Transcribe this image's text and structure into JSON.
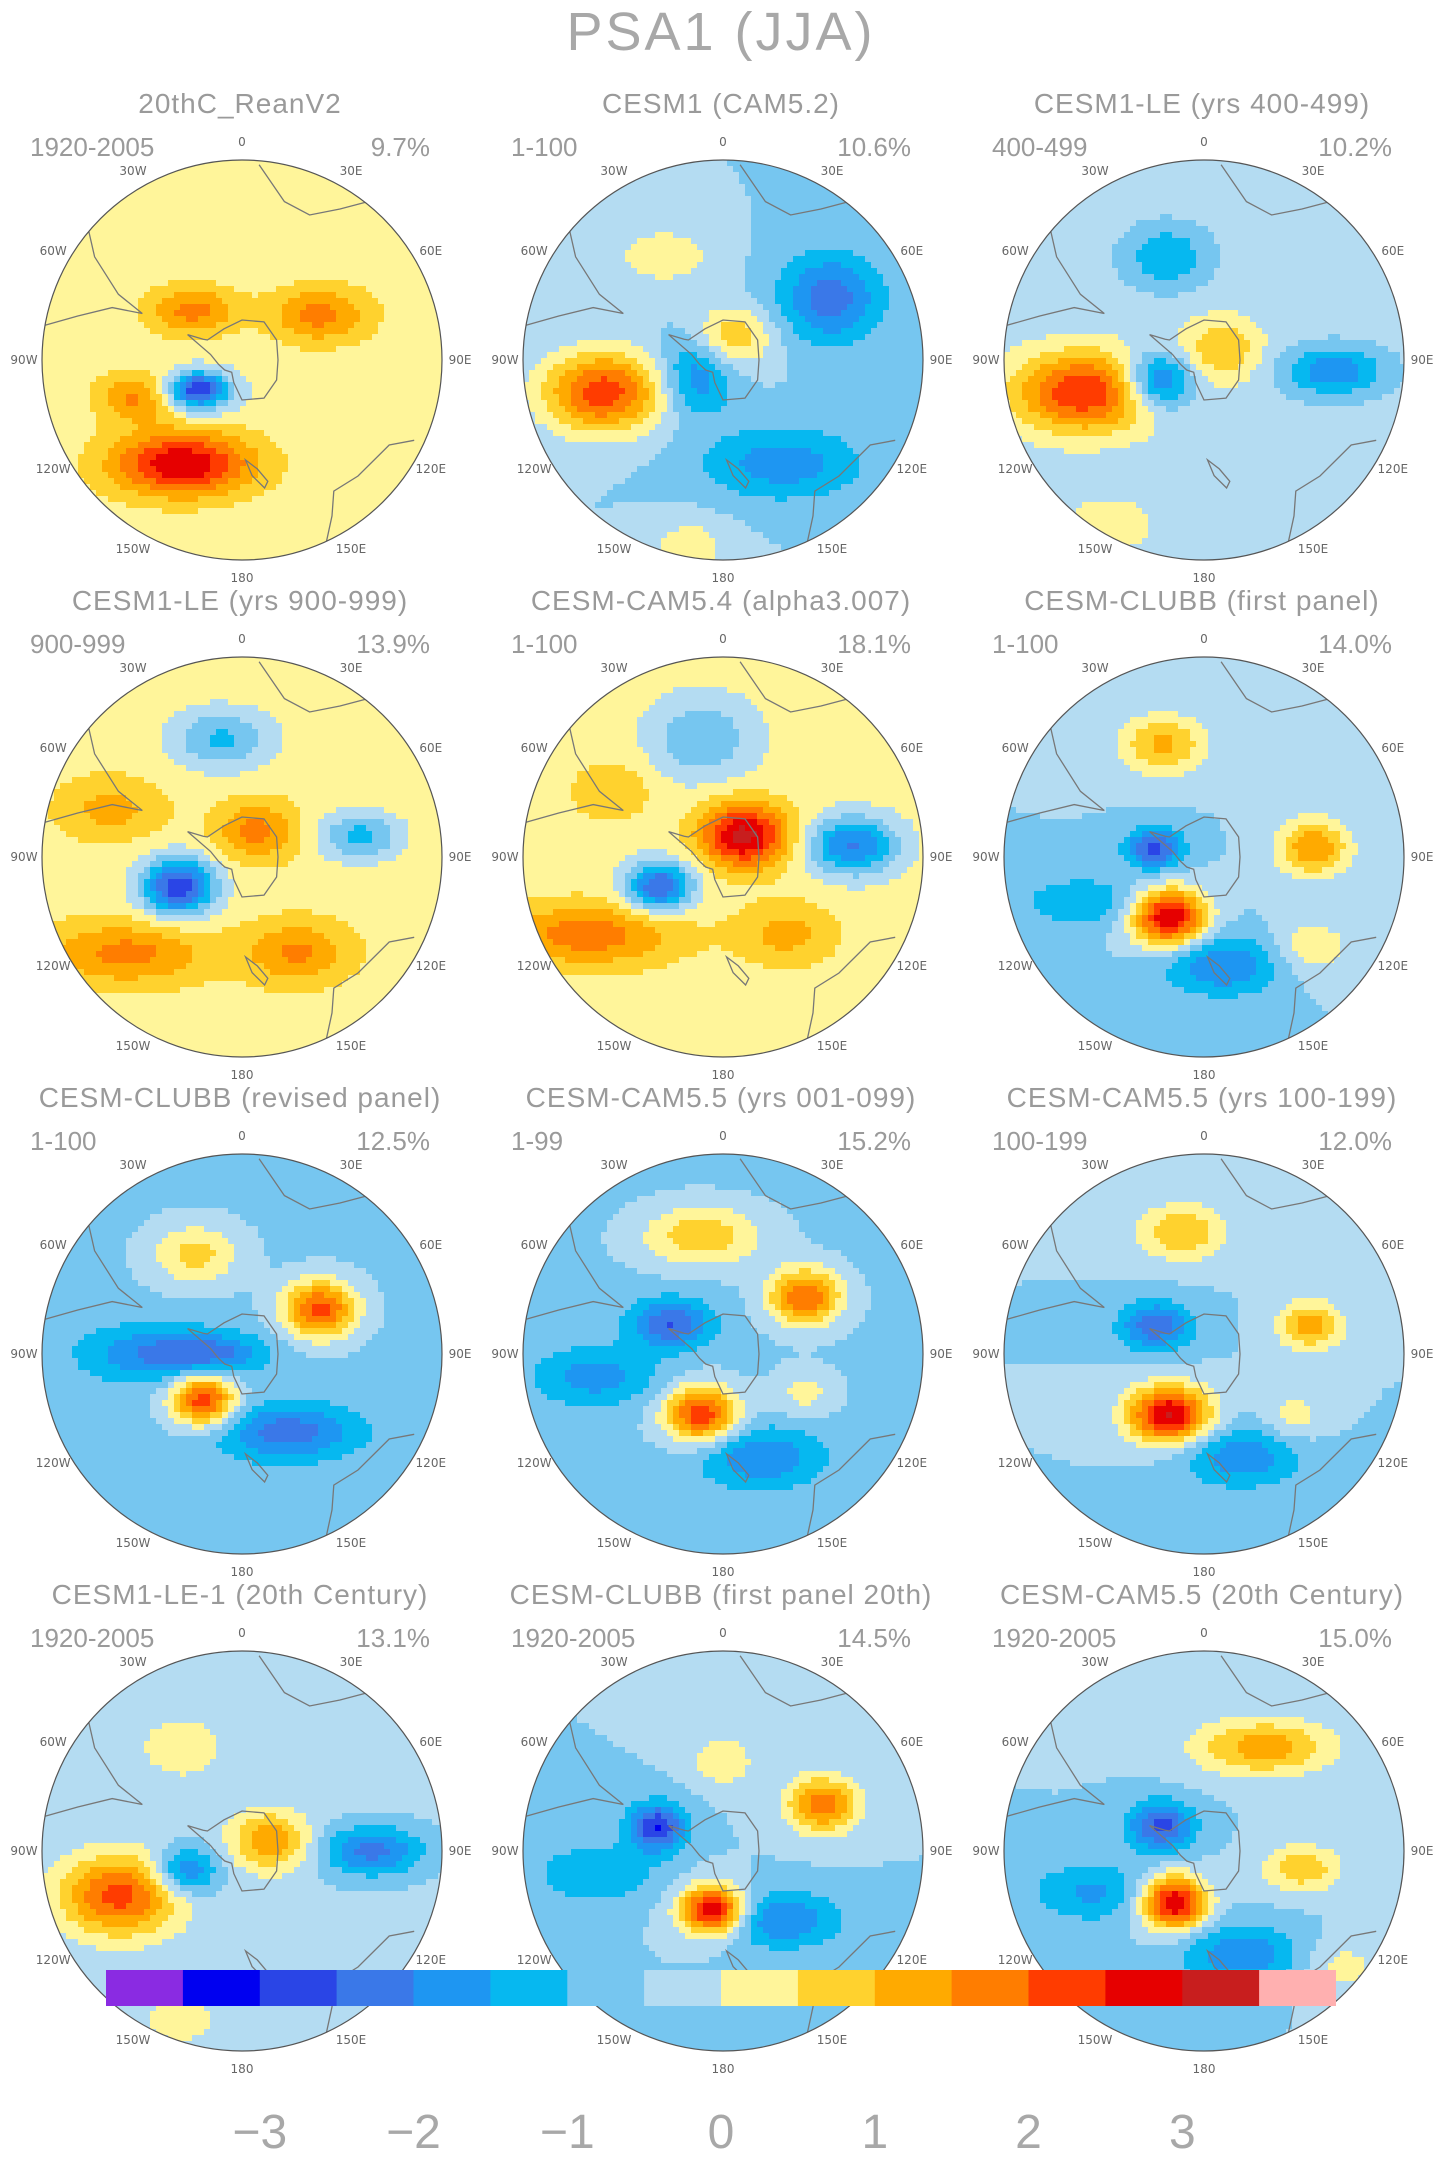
{
  "title": "PSA1 (JJA)",
  "panels": [
    {
      "title": "20thC_ReanV2",
      "period": "1920-2005",
      "pct": "9.7%",
      "bg": 0.2,
      "blobs": [
        [
          -45,
          0.35,
          0.22,
          0.12,
          1.5
        ],
        [
          -125,
          0.28,
          0.18,
          0.1,
          -2.5
        ],
        [
          -150,
          0.6,
          0.35,
          0.16,
          2.8
        ],
        [
          -110,
          0.55,
          0.2,
          0.12,
          1.5
        ],
        [
          60,
          0.45,
          0.25,
          0.14,
          1.5
        ],
        [
          -120,
          0.25,
          0.1,
          0.06,
          -1.0
        ]
      ]
    },
    {
      "title": "CESM1 (CAM5.2)",
      "period": "1-100",
      "pct": "10.6%",
      "bg": -0.5,
      "blobs": [
        [
          -105,
          0.62,
          0.3,
          0.2,
          2.8
        ],
        [
          -120,
          0.15,
          0.18,
          0.2,
          -1.5
        ],
        [
          60,
          0.62,
          0.25,
          0.22,
          -1.8
        ],
        [
          20,
          0.12,
          0.2,
          0.15,
          1.5
        ],
        [
          -30,
          0.6,
          0.25,
          0.14,
          0.9
        ],
        [
          150,
          0.6,
          0.4,
          0.18,
          -1.3
        ],
        [
          -170,
          0.95,
          0.2,
          0.15,
          0.8
        ]
      ]
    },
    {
      "title": "CESM1-LE (yrs 400-499)",
      "period": "400-499",
      "pct": "10.2%",
      "bg": -0.3,
      "blobs": [
        [
          -105,
          0.62,
          0.35,
          0.2,
          2.8
        ],
        [
          -115,
          0.25,
          0.18,
          0.14,
          -2.2
        ],
        [
          60,
          0.1,
          0.2,
          0.16,
          1.3
        ],
        [
          95,
          0.65,
          0.25,
          0.12,
          -1.6
        ],
        [
          -20,
          0.55,
          0.2,
          0.15,
          -1.2
        ],
        [
          -150,
          0.95,
          0.25,
          0.15,
          0.6
        ]
      ]
    },
    {
      "title": "CESM1-LE (yrs 900-999)",
      "period": "900-999",
      "pct": "13.9%",
      "bg": 0.3,
      "blobs": [
        [
          -115,
          0.35,
          0.18,
          0.14,
          -3.2
        ],
        [
          -10,
          0.6,
          0.25,
          0.15,
          -1.4
        ],
        [
          80,
          0.6,
          0.2,
          0.12,
          -1.5
        ],
        [
          30,
          0.15,
          0.2,
          0.14,
          1.4
        ],
        [
          -130,
          0.75,
          0.4,
          0.15,
          1.4
        ],
        [
          150,
          0.55,
          0.25,
          0.15,
          1.3
        ],
        [
          -70,
          0.7,
          0.25,
          0.15,
          0.9
        ]
      ]
    },
    {
      "title": "CESM-CAM5.4 (alpha3.007)",
      "period": "1-100",
      "pct": "18.1%",
      "bg": 0.2,
      "blobs": [
        [
          -115,
          0.35,
          0.16,
          0.12,
          -2.8
        ],
        [
          45,
          0.15,
          0.22,
          0.16,
          3.0
        ],
        [
          85,
          0.65,
          0.22,
          0.14,
          -2.3
        ],
        [
          -10,
          0.6,
          0.25,
          0.2,
          -1.2
        ],
        [
          -120,
          0.78,
          0.45,
          0.16,
          1.6
        ],
        [
          140,
          0.5,
          0.25,
          0.16,
          1.0
        ],
        [
          -60,
          0.65,
          0.2,
          0.15,
          0.8
        ]
      ]
    },
    {
      "title": "CESM-CLUBB (first panel)",
      "period": "1-100",
      "pct": "14.0%",
      "bg": -0.5,
      "blobs": [
        [
          -150,
          0.35,
          0.18,
          0.14,
          3.6
        ],
        [
          -80,
          0.25,
          0.14,
          0.1,
          -2.2
        ],
        [
          -20,
          0.6,
          0.22,
          0.15,
          1.6
        ],
        [
          85,
          0.55,
          0.18,
          0.14,
          2.0
        ],
        [
          170,
          0.55,
          0.3,
          0.15,
          -1.5
        ],
        [
          -110,
          0.65,
          0.3,
          0.12,
          -1.0
        ],
        [
          130,
          0.7,
          0.2,
          0.15,
          0.9
        ]
      ]
    },
    {
      "title": "CESM-CLUBB (revised panel)",
      "period": "1-100",
      "pct": "12.5%",
      "bg": -0.6,
      "blobs": [
        [
          -140,
          0.3,
          0.16,
          0.13,
          3.0
        ],
        [
          60,
          0.45,
          0.18,
          0.14,
          2.8
        ],
        [
          -25,
          0.55,
          0.22,
          0.15,
          1.3
        ],
        [
          150,
          0.45,
          0.35,
          0.14,
          -1.7
        ],
        [
          -90,
          0.45,
          0.35,
          0.14,
          -1.4
        ],
        [
          -90,
          0.12,
          0.25,
          0.1,
          -1.2
        ]
      ]
    },
    {
      "title": "CESM-CAM5.5 (yrs 001-099)",
      "period": "1-99",
      "pct": "15.2%",
      "bg": -0.6,
      "blobs": [
        [
          -160,
          0.32,
          0.18,
          0.14,
          3.0
        ],
        [
          55,
          0.5,
          0.18,
          0.14,
          2.6
        ],
        [
          -10,
          0.6,
          0.3,
          0.15,
          1.5
        ],
        [
          -60,
          0.3,
          0.2,
          0.12,
          -1.9
        ],
        [
          160,
          0.55,
          0.3,
          0.15,
          -1.4
        ],
        [
          -100,
          0.65,
          0.3,
          0.14,
          -1.2
        ],
        [
          115,
          0.45,
          0.15,
          0.12,
          0.8
        ]
      ]
    },
    {
      "title": "CESM-CAM5.5 (yrs 100-199)",
      "period": "100-199",
      "pct": "12.0%",
      "bg": -0.5,
      "blobs": [
        [
          -150,
          0.35,
          0.2,
          0.14,
          3.6
        ],
        [
          -60,
          0.28,
          0.18,
          0.12,
          -1.9
        ],
        [
          -10,
          0.62,
          0.22,
          0.14,
          1.5
        ],
        [
          75,
          0.55,
          0.16,
          0.12,
          1.8
        ],
        [
          160,
          0.55,
          0.3,
          0.15,
          -1.4
        ],
        [
          125,
          0.55,
          0.15,
          0.12,
          0.8
        ]
      ]
    },
    {
      "title": "CESM1-LE-1 (20th Century)",
      "period": "1920-2005",
      "pct": "13.1%",
      "bg": -0.4,
      "blobs": [
        [
          -110,
          0.65,
          0.3,
          0.2,
          2.6
        ],
        [
          -110,
          0.3,
          0.16,
          0.12,
          -1.8
        ],
        [
          70,
          0.15,
          0.2,
          0.15,
          1.8
        ],
        [
          90,
          0.65,
          0.25,
          0.12,
          -1.8
        ],
        [
          -30,
          0.6,
          0.2,
          0.15,
          0.9
        ],
        [
          -160,
          0.9,
          0.25,
          0.15,
          0.6
        ]
      ]
    },
    {
      "title": "CESM-CLUBB (first panel 20th)",
      "period": "1920-2005",
      "pct": "14.5%",
      "bg": -0.5,
      "blobs": [
        [
          -170,
          0.3,
          0.16,
          0.12,
          3.6
        ],
        [
          -70,
          0.35,
          0.14,
          0.12,
          -2.5
        ],
        [
          65,
          0.55,
          0.18,
          0.14,
          2.3
        ],
        [
          0,
          0.45,
          0.15,
          0.12,
          1.0
        ],
        [
          140,
          0.45,
          0.3,
          0.14,
          -1.5
        ],
        [
          -100,
          0.65,
          0.3,
          0.15,
          -1.0
        ]
      ]
    },
    {
      "title": "CESM-CAM5.5 (20th Century)",
      "period": "1920-2005",
      "pct": "15.0%",
      "bg": -0.5,
      "blobs": [
        [
          -150,
          0.3,
          0.16,
          0.13,
          3.6
        ],
        [
          -60,
          0.25,
          0.16,
          0.12,
          -2.2
        ],
        [
          30,
          0.6,
          0.35,
          0.14,
          1.8
        ],
        [
          100,
          0.5,
          0.2,
          0.12,
          1.4
        ],
        [
          160,
          0.55,
          0.3,
          0.15,
          -1.4
        ],
        [
          -110,
          0.6,
          0.3,
          0.15,
          -1.1
        ],
        [
          130,
          0.9,
          0.2,
          0.15,
          0.7
        ]
      ]
    }
  ],
  "lon_labels": [
    "0",
    "30E",
    "60E",
    "90E",
    "120E",
    "150E",
    "180",
    "150W",
    "120W",
    "90W",
    "60W",
    "30W"
  ],
  "colorbar": {
    "levels": [
      -3.5,
      -3.0,
      -2.5,
      -2.0,
      -1.5,
      -1.0,
      -0.5,
      0,
      0.5,
      1.0,
      1.5,
      2.0,
      2.5,
      3.0,
      3.5
    ],
    "colors": [
      "#8a2be2",
      "#0000f0",
      "#2a45e6",
      "#3a78e8",
      "#1e96f2",
      "#06b8f0",
      "#76c6f0",
      "#b4dcf2",
      "#fff59a",
      "#ffd22e",
      "#ffaa00",
      "#ff7d00",
      "#ff3c00",
      "#e60000",
      "#c81e1e",
      "#ffb0b0"
    ],
    "labels": [
      "−3",
      "−2",
      "−1",
      "0",
      "1",
      "2",
      "3"
    ],
    "label_values": [
      -3,
      -2,
      -1,
      0,
      1,
      2,
      3
    ]
  }
}
